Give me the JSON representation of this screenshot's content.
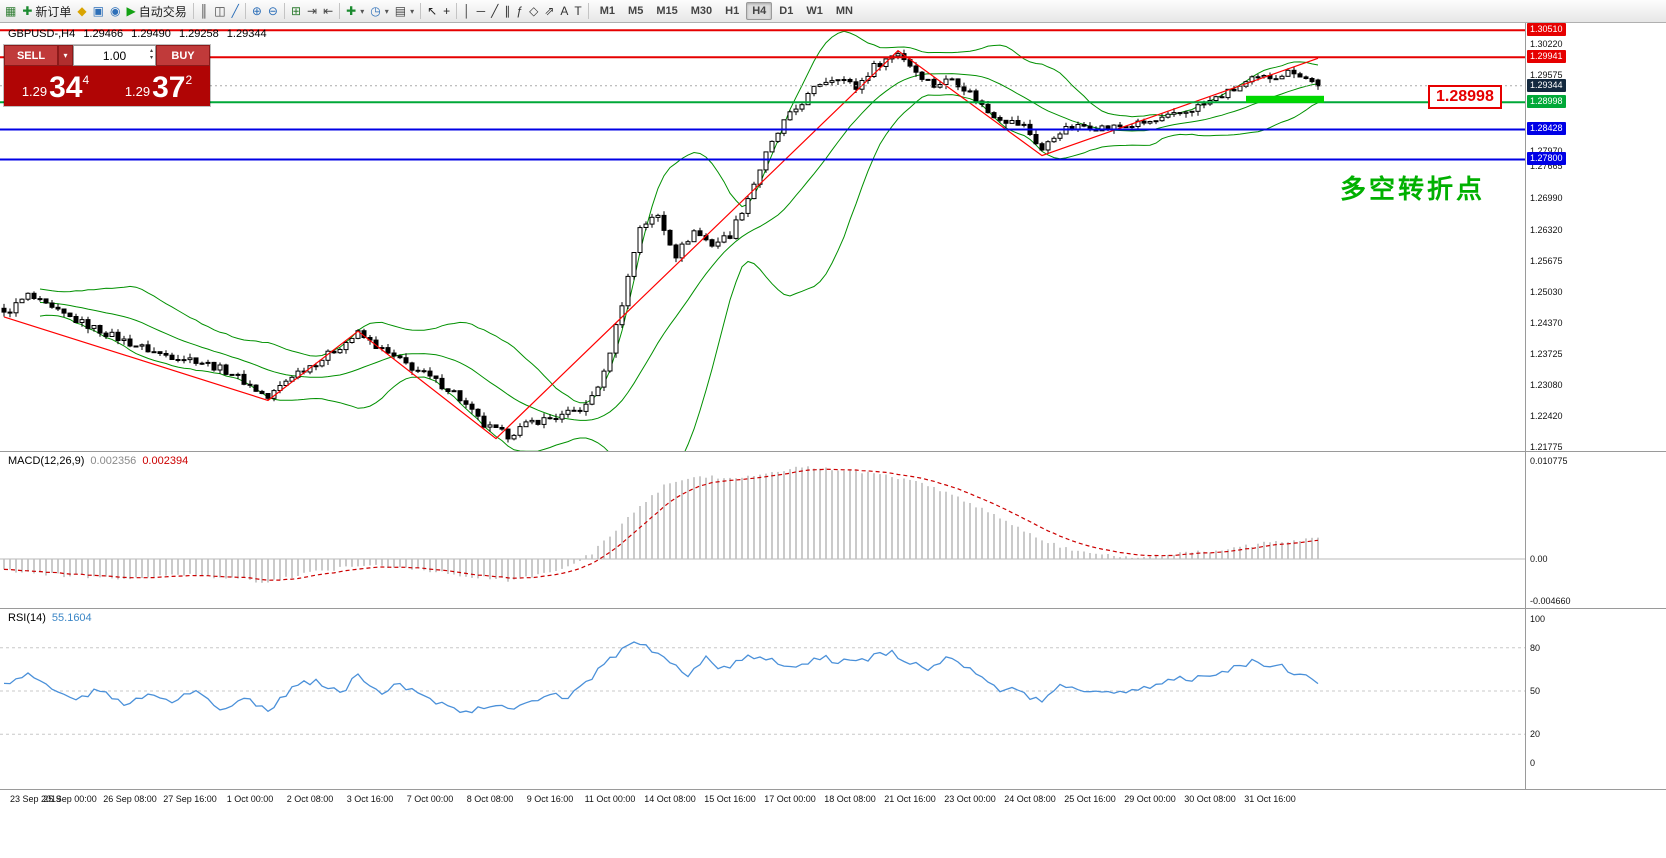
{
  "toolbar": {
    "groups": [
      {
        "name": "trade",
        "items": [
          {
            "name": "new-chart",
            "glyph": "▦",
            "color": "#2f7d32"
          },
          {
            "name": "new-order",
            "glyph": "✚",
            "color": "#1b8a2f",
            "label": "新订单"
          },
          {
            "name": "metaeditor",
            "glyph": "◆",
            "color": "#d9a400"
          },
          {
            "name": "market-watch",
            "glyph": "▣",
            "color": "#2d6fb8"
          },
          {
            "name": "navigator",
            "glyph": "◉",
            "color": "#2d6fb8"
          },
          {
            "name": "autotrading",
            "glyph": "▶",
            "color": "#12a112",
            "label": "自动交易"
          }
        ]
      },
      {
        "name": "chart-modes",
        "items": [
          {
            "name": "chart-bars",
            "glyph": "║",
            "color": "#444444"
          },
          {
            "name": "chart-candles",
            "glyph": "◫",
            "color": "#444444"
          },
          {
            "name": "chart-line",
            "glyph": "╱",
            "color": "#2d6fb8"
          }
        ]
      },
      {
        "name": "zoom",
        "items": [
          {
            "name": "zoom-in",
            "glyph": "⊕",
            "color": "#2d6fb8"
          },
          {
            "name": "zoom-out",
            "glyph": "⊖",
            "color": "#2d6fb8"
          }
        ]
      },
      {
        "name": "scroll",
        "items": [
          {
            "name": "tile-windows",
            "glyph": "⊞",
            "color": "#2f7d32"
          },
          {
            "name": "auto-scroll",
            "glyph": "⇥",
            "color": "#444444"
          },
          {
            "name": "chart-shift",
            "glyph": "⇤",
            "color": "#444444"
          }
        ]
      },
      {
        "name": "insert",
        "items": [
          {
            "name": "indicators",
            "glyph": "✚",
            "color": "#1b8a2f",
            "caret": true
          },
          {
            "name": "periods",
            "glyph": "◷",
            "color": "#2d6fb8",
            "caret": true
          },
          {
            "name": "templates",
            "glyph": "▤",
            "color": "#444444",
            "caret": true
          }
        ]
      },
      {
        "name": "pointer",
        "items": [
          {
            "name": "cursor",
            "glyph": "↖",
            "color": "#222222"
          },
          {
            "name": "crosshair",
            "glyph": "+",
            "color": "#222222"
          }
        ]
      },
      {
        "name": "objects",
        "items": [
          {
            "name": "vertical-line",
            "glyph": "│",
            "color": "#333333"
          },
          {
            "name": "horizontal-line",
            "glyph": "─",
            "color": "#333333"
          },
          {
            "name": "trendline",
            "glyph": "╱",
            "color": "#333333"
          },
          {
            "name": "equidistant-channel",
            "glyph": "∥",
            "color": "#333333"
          },
          {
            "name": "fibonacci-retracement",
            "glyph": "ƒ",
            "color": "#333333"
          },
          {
            "name": "shapes",
            "glyph": "◇",
            "color": "#333333"
          },
          {
            "name": "arrows",
            "glyph": "⇗",
            "color": "#333333"
          },
          {
            "name": "text",
            "glyph": "A",
            "color": "#333333"
          },
          {
            "name": "text-label",
            "glyph": "T",
            "color": "#333333"
          }
        ]
      }
    ],
    "timeframes": {
      "items": [
        "M1",
        "M5",
        "M15",
        "M30",
        "H1",
        "H4",
        "D1",
        "W1",
        "MN"
      ],
      "active": "H4"
    }
  },
  "main_header": {
    "symbol_period": "GBPUSD-,H4",
    "open": "1.29466",
    "high": "1.29490",
    "low": "1.29258",
    "close": "1.29344"
  },
  "trade_panel": {
    "sell_label": "SELL",
    "buy_label": "BUY",
    "volume": "1.00",
    "dropdown_icon": "▾",
    "spinner_up": "▴",
    "spinner_down": "▾",
    "bid": {
      "small": "1.29",
      "big": "34",
      "sup": "4"
    },
    "ask": {
      "small": "1.29",
      "big": "37",
      "sup": "2"
    }
  },
  "annotations": {
    "price_callout": "1.28998",
    "turning_point_note": "多空转折点"
  },
  "chart_data": {
    "type": "candlestick",
    "symbol": "GBPUSD-",
    "timeframe": "H4",
    "main": {
      "ylim": [
        1.2169,
        1.3066
      ],
      "candle_count": 220,
      "last_candle": {
        "open": 1.29466,
        "high": 1.2949,
        "low": 1.29258,
        "close": 1.29344
      },
      "close_anchors": [
        [
          0,
          1.2455
        ],
        [
          4,
          1.2495
        ],
        [
          8,
          1.2465
        ],
        [
          14,
          1.2432
        ],
        [
          20,
          1.24
        ],
        [
          26,
          1.2372
        ],
        [
          32,
          1.236
        ],
        [
          38,
          1.2332
        ],
        [
          44,
          1.228
        ],
        [
          48,
          1.2328
        ],
        [
          53,
          1.2362
        ],
        [
          59,
          1.2415
        ],
        [
          64,
          1.2372
        ],
        [
          70,
          1.233
        ],
        [
          75,
          1.2292
        ],
        [
          80,
          1.2222
        ],
        [
          84,
          1.2202
        ],
        [
          88,
          1.223
        ],
        [
          93,
          1.2242
        ],
        [
          97,
          1.2262
        ],
        [
          100,
          1.233
        ],
        [
          103,
          1.248
        ],
        [
          106,
          1.264
        ],
        [
          109,
          1.2662
        ],
        [
          112,
          1.258
        ],
        [
          115,
          1.263
        ],
        [
          118,
          1.2602
        ],
        [
          121,
          1.2622
        ],
        [
          124,
          1.27
        ],
        [
          127,
          1.279
        ],
        [
          130,
          1.2858
        ],
        [
          133,
          1.29
        ],
        [
          136,
          1.294
        ],
        [
          139,
          1.2955
        ],
        [
          142,
          1.293
        ],
        [
          145,
          1.2975
        ],
        [
          149,
          1.3005
        ],
        [
          152,
          1.2965
        ],
        [
          155,
          1.2935
        ],
        [
          158,
          1.295
        ],
        [
          161,
          1.292
        ],
        [
          164,
          1.288
        ],
        [
          167,
          1.2862
        ],
        [
          170,
          1.285
        ],
        [
          173,
          1.28
        ],
        [
          176,
          1.284
        ],
        [
          180,
          1.285
        ],
        [
          184,
          1.2846
        ],
        [
          188,
          1.2852
        ],
        [
          192,
          1.286
        ],
        [
          196,
          1.2876
        ],
        [
          200,
          1.2896
        ],
        [
          204,
          1.292
        ],
        [
          208,
          1.2946
        ],
        [
          212,
          1.2956
        ],
        [
          215,
          1.2966
        ],
        [
          217,
          1.295
        ],
        [
          219,
          1.29344
        ]
      ],
      "zigzag_anchors": [
        [
          0,
          1.245
        ],
        [
          44,
          1.2275
        ],
        [
          59,
          1.242
        ],
        [
          82,
          1.2195
        ],
        [
          149,
          1.3008
        ],
        [
          173,
          1.2788
        ],
        [
          219,
          1.2992
        ]
      ],
      "zigzag_color": "#ff0000",
      "bollinger": {
        "period": 20,
        "deviation": 2,
        "color": "#009000"
      },
      "hlines": [
        {
          "price": 1.3051,
          "label": "1.30510",
          "color": "#e60000",
          "width": 2
        },
        {
          "price": 1.29941,
          "label": "1.29941",
          "color": "#e60000",
          "width": 2
        },
        {
          "price": 1.28998,
          "label": "1.28998",
          "color": "#00a838",
          "width": 2
        },
        {
          "price": 1.28428,
          "label": "1.28428",
          "color": "#0000e6",
          "width": 2
        },
        {
          "price": 1.278,
          "label": "1.27800",
          "color": "#0000e6",
          "width": 2
        }
      ],
      "current_price_label": {
        "price": 1.29344,
        "label": "1.29344",
        "bg": "#13293f"
      },
      "plain_ticks": [
        "1.30220",
        "1.29575",
        "1.27970",
        "1.27665",
        "1.26990",
        "1.26320",
        "1.25675",
        "1.25030",
        "1.24370",
        "1.23725",
        "1.23080",
        "1.22420",
        "1.21775"
      ],
      "highlight_segment": {
        "price": 1.2906,
        "x_from_candle": 207,
        "x_to_candle": 219,
        "color": "#00d800",
        "thickness": 7
      }
    },
    "macd": {
      "label": "MACD(12,26,9)",
      "value_main": "0.002356",
      "value_signal": "0.002394",
      "signal_period": 9,
      "hist_color": "#bdbdbd",
      "signal_color": "#cc0000",
      "anchors": [
        [
          0,
          -0.0012
        ],
        [
          10,
          -0.0018
        ],
        [
          20,
          -0.0022
        ],
        [
          30,
          -0.0017
        ],
        [
          38,
          -0.0021
        ],
        [
          44,
          -0.0026
        ],
        [
          52,
          -0.0014
        ],
        [
          60,
          -0.0006
        ],
        [
          68,
          -0.001
        ],
        [
          76,
          -0.0019
        ],
        [
          84,
          -0.0023
        ],
        [
          92,
          -0.0014
        ],
        [
          98,
          0.0006
        ],
        [
          104,
          0.0046
        ],
        [
          110,
          0.008
        ],
        [
          116,
          0.0091
        ],
        [
          122,
          0.0088
        ],
        [
          128,
          0.0096
        ],
        [
          134,
          0.0101
        ],
        [
          140,
          0.0098
        ],
        [
          146,
          0.0094
        ],
        [
          152,
          0.0085
        ],
        [
          158,
          0.007
        ],
        [
          164,
          0.0052
        ],
        [
          170,
          0.0031
        ],
        [
          176,
          0.0013
        ],
        [
          182,
          0.0005
        ],
        [
          188,
          0.0002
        ],
        [
          194,
          0.0004
        ],
        [
          200,
          0.0008
        ],
        [
          206,
          0.0013
        ],
        [
          212,
          0.0019
        ],
        [
          219,
          0.002356
        ]
      ],
      "ticks": [
        {
          "v": 0.010775,
          "label": "0.010775"
        },
        {
          "v": 0,
          "label": "0.00"
        },
        {
          "v": -0.00466,
          "label": "-0.004660"
        }
      ]
    },
    "rsi": {
      "label": "RSI(14)",
      "value": "55.1604",
      "line_color": "#4a90d9",
      "levels": [
        80,
        50,
        20
      ],
      "anchors": [
        [
          0,
          55
        ],
        [
          4,
          62
        ],
        [
          8,
          50
        ],
        [
          12,
          45
        ],
        [
          16,
          52
        ],
        [
          20,
          40
        ],
        [
          24,
          47
        ],
        [
          28,
          43
        ],
        [
          32,
          50
        ],
        [
          36,
          38
        ],
        [
          40,
          45
        ],
        [
          44,
          36
        ],
        [
          48,
          52
        ],
        [
          52,
          58
        ],
        [
          56,
          48
        ],
        [
          59,
          62
        ],
        [
          63,
          50
        ],
        [
          66,
          55
        ],
        [
          70,
          45
        ],
        [
          74,
          40
        ],
        [
          78,
          35
        ],
        [
          82,
          42
        ],
        [
          86,
          38
        ],
        [
          90,
          48
        ],
        [
          94,
          46
        ],
        [
          98,
          60
        ],
        [
          102,
          75
        ],
        [
          105,
          83
        ],
        [
          108,
          78
        ],
        [
          111,
          70
        ],
        [
          114,
          62
        ],
        [
          117,
          72
        ],
        [
          120,
          65
        ],
        [
          124,
          75
        ],
        [
          128,
          71
        ],
        [
          132,
          68
        ],
        [
          136,
          74
        ],
        [
          140,
          70
        ],
        [
          144,
          73
        ],
        [
          148,
          76
        ],
        [
          151,
          70
        ],
        [
          154,
          65
        ],
        [
          157,
          72
        ],
        [
          160,
          68
        ],
        [
          163,
          58
        ],
        [
          166,
          52
        ],
        [
          170,
          48
        ],
        [
          173,
          44
        ],
        [
          176,
          55
        ],
        [
          180,
          52
        ],
        [
          184,
          48
        ],
        [
          188,
          50
        ],
        [
          192,
          55
        ],
        [
          196,
          60
        ],
        [
          200,
          58
        ],
        [
          204,
          65
        ],
        [
          208,
          70
        ],
        [
          212,
          68
        ],
        [
          215,
          63
        ],
        [
          219,
          55.16
        ]
      ],
      "ticks": [
        {
          "v": 100,
          "label": "100"
        },
        {
          "v": 80,
          "label": "80"
        },
        {
          "v": 50,
          "label": "50"
        },
        {
          "v": 20,
          "label": "20"
        },
        {
          "v": 0,
          "label": "0"
        }
      ]
    },
    "time_labels": [
      "23 Sep 2019",
      "25 Sep 00:00",
      "26 Sep 08:00",
      "27 Sep 16:00",
      "1 Oct 00:00",
      "2 Oct 08:00",
      "3 Oct 16:00",
      "7 Oct 00:00",
      "8 Oct 08:00",
      "9 Oct 16:00",
      "11 Oct 00:00",
      "14 Oct 08:00",
      "15 Oct 16:00",
      "17 Oct 00:00",
      "18 Oct 08:00",
      "21 Oct 16:00",
      "23 Oct 00:00",
      "24 Oct 08:00",
      "25 Oct 16:00",
      "29 Oct 00:00",
      "30 Oct 08:00",
      "31 Oct 16:00"
    ]
  }
}
